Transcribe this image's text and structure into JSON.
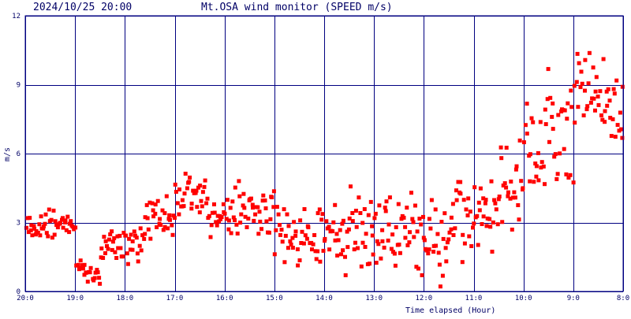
{
  "header": {
    "timestamp": "2024/10/25 20:00",
    "title": "Mt.OSA wind monitor (SPEED m/s)"
  },
  "colors": {
    "grid": "#000080",
    "frame": "#000080",
    "points": "#ff0000",
    "text": "#000066",
    "background": "#ffffff"
  },
  "chart_data": {
    "type": "scatter",
    "title": "Mt.OSA wind monitor (SPEED m/s)",
    "xlabel": "Time elapsed (Hour)",
    "ylabel": "m/s",
    "xlim": [
      20,
      8
    ],
    "ylim": [
      0,
      12
    ],
    "x_ticks": [
      "20:0",
      "19:0",
      "18:0",
      "17:0",
      "16:0",
      "15:0",
      "14:0",
      "13:0",
      "12:0",
      "11:0",
      "10:0",
      "9:0",
      "8:0"
    ],
    "x_tick_hours": [
      20,
      19,
      18,
      17,
      16,
      15,
      14,
      13,
      12,
      11,
      10,
      9,
      8
    ],
    "y_ticks": [
      0,
      3,
      6,
      9,
      12
    ],
    "grid": true,
    "series": [
      {
        "color": "#ff0000",
        "segments": [
          {
            "from": 20.0,
            "to": 19.7,
            "base": 2.8,
            "jitter": 0.35
          },
          {
            "from": 19.7,
            "to": 19.0,
            "base": 2.9,
            "jitter": 0.4
          },
          {
            "from": 19.0,
            "to": 18.8,
            "base": 1.2,
            "jitter": 0.5
          },
          {
            "from": 18.8,
            "to": 18.5,
            "base": 0.7,
            "jitter": 0.4
          },
          {
            "from": 18.5,
            "to": 18.0,
            "base": 2.0,
            "jitter": 0.5
          },
          {
            "from": 18.0,
            "to": 17.6,
            "base": 2.2,
            "jitter": 0.6
          },
          {
            "from": 17.6,
            "to": 17.0,
            "base": 3.3,
            "jitter": 0.6
          },
          {
            "from": 17.0,
            "to": 16.4,
            "base": 4.3,
            "jitter": 0.7
          },
          {
            "from": 16.4,
            "to": 15.8,
            "base": 3.4,
            "jitter": 0.8
          },
          {
            "from": 15.8,
            "to": 15.0,
            "base": 3.6,
            "jitter": 0.9
          },
          {
            "from": 15.0,
            "to": 14.2,
            "base": 2.5,
            "jitter": 0.9
          },
          {
            "from": 14.2,
            "to": 13.5,
            "base": 2.4,
            "jitter": 1.0
          },
          {
            "from": 13.5,
            "to": 12.8,
            "base": 2.8,
            "jitter": 1.2
          },
          {
            "from": 12.8,
            "to": 12.0,
            "base": 2.6,
            "jitter": 1.3
          },
          {
            "from": 12.0,
            "to": 11.5,
            "base": 2.3,
            "jitter": 1.4
          },
          {
            "from": 11.5,
            "to": 11.0,
            "base": 3.0,
            "jitter": 1.3
          },
          {
            "from": 11.0,
            "to": 10.5,
            "base": 3.6,
            "jitter": 1.2
          },
          {
            "from": 10.5,
            "to": 10.0,
            "base": 4.8,
            "jitter": 1.4
          },
          {
            "from": 10.0,
            "to": 9.6,
            "base": 6.2,
            "jitter": 1.5
          },
          {
            "from": 9.6,
            "to": 9.0,
            "base": 6.8,
            "jitter": 1.6
          },
          {
            "from": 9.0,
            "to": 8.5,
            "base": 8.3,
            "jitter": 1.5
          },
          {
            "from": 8.5,
            "to": 8.0,
            "base": 8.2,
            "jitter": 1.5
          }
        ],
        "samples_per_hour": 48
      }
    ]
  }
}
